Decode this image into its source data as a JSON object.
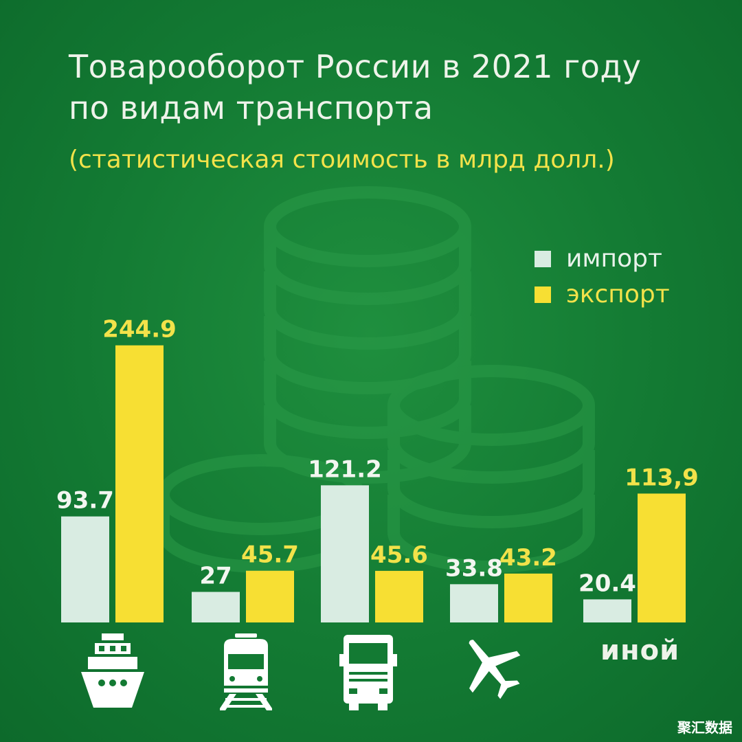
{
  "title_line1": "Товарооборот России в 2021 году",
  "title_line2": "по видам транспорта",
  "subtitle": "(статистическая стоимость в млрд долл.)",
  "watermark": "聚汇数据",
  "colors": {
    "import": "#d9ece2",
    "export": "#f7df33",
    "background": "#137a33"
  },
  "chart_data": {
    "type": "bar",
    "categories": [
      "ship-icon",
      "train-icon",
      "truck-icon",
      "airplane-icon",
      "иной"
    ],
    "series": [
      {
        "name": "импорт",
        "values": [
          93.7,
          27,
          121.2,
          33.8,
          20.4
        ],
        "labels": [
          "93.7",
          "27",
          "121.2",
          "33.8",
          "20.4"
        ]
      },
      {
        "name": "экспорт",
        "values": [
          244.9,
          45.7,
          45.6,
          43.2,
          113.9
        ],
        "labels": [
          "244.9",
          "45.7",
          "45.6",
          "43.2",
          "113,9"
        ]
      }
    ],
    "title": "Товарооборот России в 2021 году по видам транспорта",
    "ylim": [
      0,
      250
    ],
    "grid": false,
    "legend": "top-right"
  }
}
